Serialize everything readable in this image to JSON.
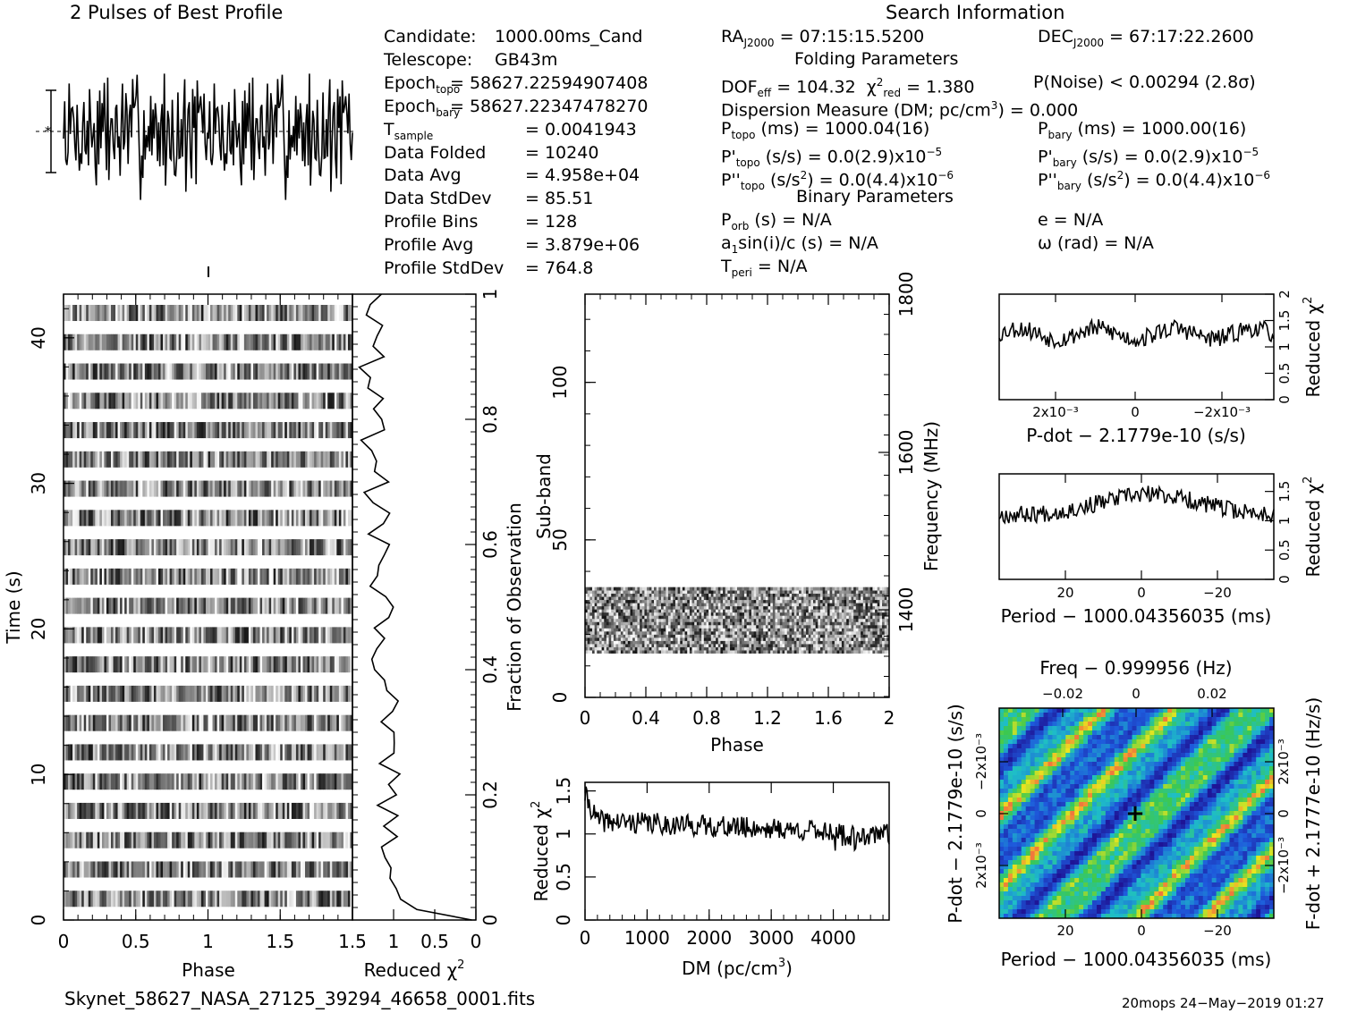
{
  "header": {
    "profile_title": "2 Pulses of Best Profile",
    "search_title": "Search Information"
  },
  "candidate_info": [
    {
      "label": "Candidate:",
      "value": "1000.00ms_Cand"
    },
    {
      "label": "Telescope:",
      "value": "GB43m"
    },
    {
      "label": "Epoch",
      "sub": "topo",
      "value": "= 58627.22594907408"
    },
    {
      "label": "Epoch",
      "sub": "bary",
      "value": "= 58627.22347478270"
    },
    {
      "label": "T",
      "sub": "sample",
      "value": "=   0.0041943"
    },
    {
      "label": "Data Folded",
      "value": "=   10240"
    },
    {
      "label": "Data Avg",
      "value": "=   4.958e+04"
    },
    {
      "label": "Data StdDev",
      "value": "=   85.51"
    },
    {
      "label": "Profile Bins",
      "value": "=   128"
    },
    {
      "label": "Profile Avg",
      "value": "=   3.879e+06"
    },
    {
      "label": "Profile StdDev",
      "value": "=   764.8"
    }
  ],
  "search_info": {
    "ra": "RA",
    "ra_sub": "J2000",
    "ra_value": "= 07:15:15.5200",
    "dec": "DEC",
    "dec_sub": "J2000",
    "dec_value": "= 67:17:22.2600",
    "folding_title": "Folding Parameters",
    "dof": "DOF",
    "dof_sub": "eff",
    "dof_value": "= 104.32",
    "chi": "χ",
    "chi_sup": "2",
    "chi_sub": "red",
    "chi_value": "= 1.380",
    "pnoise": "P(Noise) < 0.00294   (2.8σ)",
    "dm": "Dispersion Measure (DM; pc/cm",
    "dm_sup": "3",
    "dm_value": ") = 0.000",
    "ptopo": "P",
    "ptopo_sub": "topo",
    "ptopo_value": " (ms) =   1000.04(16)",
    "pbary": "P",
    "pbary_sub": "bary",
    "pbary_value": " (ms) =   1000.00(16)",
    "pdtopo": "P'",
    "pdtopo_sub": "topo",
    "pdtopo_value": " (s/s) = 0.0(2.9)x10",
    "pdtopo_sup": "−5",
    "pdbary": "P'",
    "pdbary_sub": "bary",
    "pdbary_value": " (s/s) = 0.0(2.9)x10",
    "pdbary_sup": "−5",
    "pddtopo": "P''",
    "pddtopo_sub": "topo",
    "pddtopo_value": " (s/s",
    "pddtopo_value2": ") = 0.0(4.4)x10",
    "pddtopo_sup2": "−6",
    "pddbary": "P''",
    "pddbary_sub": "bary",
    "pddbary_value": " (s/s",
    "pddbary_value2": ") = 0.0(4.4)x10",
    "pddbary_sup2": "−6",
    "binary_title": "Binary Parameters",
    "porb": "P",
    "porb_sub": "orb",
    "porb_value": " (s) = N/A",
    "e_value": "e = N/A",
    "a1": "a",
    "a1_sub": "1",
    "a1_value": "sin(i)/c (s) = N/A",
    "omega_value": "ω (rad) = N/A",
    "tperi": "T",
    "tperi_sub": "peri",
    "tperi_value": " = N/A"
  },
  "footer": {
    "filename": "Skynet_58627_NASA_27125_39294_46658_0001.fits",
    "stamp": "20mops 24−May−2019 01:27"
  },
  "colors": {
    "line": "#000000",
    "heatmap_low": "#1a1aa8",
    "heatmap_mid": "#1fc4c4",
    "heatmap_high": "#f2e81a"
  },
  "chart_data": [
    {
      "type": "line",
      "title": "2 Pulses of Best Profile",
      "xlabel": "",
      "ylabel": "",
      "note": "noise-like profile, two rotations"
    },
    {
      "type": "heatmap",
      "xlabel": "Phase",
      "ylabel": "Time (s)",
      "x_ticks": [
        "0",
        "0.5",
        "1",
        "1.5"
      ],
      "y_ticks": [
        "0",
        "10",
        "20",
        "30",
        "40"
      ],
      "xlim": [
        0,
        2
      ],
      "ylim": [
        0,
        43
      ]
    },
    {
      "type": "line",
      "xlabel": "Reduced χ²",
      "ylabel": "Fraction of Observation",
      "x_ticks": [
        "1.5",
        "1",
        "0.5",
        "0"
      ],
      "y_ticks": [
        "0",
        "0.2",
        "0.4",
        "0.6",
        "0.8",
        "1"
      ],
      "xlim": [
        1.5,
        0
      ],
      "ylim": [
        0,
        1
      ]
    },
    {
      "type": "heatmap",
      "xlabel": "Phase",
      "ylabel": "Sub-band",
      "y2label": "Frequency (MHz)",
      "x_ticks": [
        "0",
        "0.4",
        "0.8",
        "1.2",
        "1.6",
        "2"
      ],
      "y_ticks": [
        "0",
        "50",
        "100"
      ],
      "y2_ticks": [
        "1400",
        "1600",
        "1800"
      ],
      "xlim": [
        0,
        2
      ],
      "ylim": [
        0,
        128
      ],
      "filled_rows": [
        14,
        35
      ]
    },
    {
      "type": "line",
      "xlabel": "DM (pc/cm³)",
      "ylabel": "Reduced χ²",
      "x_ticks": [
        "0",
        "1000",
        "2000",
        "3000",
        "4000"
      ],
      "y_ticks": [
        "0",
        "0.5",
        "1",
        "1.5"
      ],
      "xlim": [
        0,
        4900
      ],
      "ylim": [
        0,
        1.6
      ]
    },
    {
      "type": "line",
      "xlabel": "P-dot − 2.1779e-10 (s/s)",
      "ylabel": "Reduced χ²",
      "x_ticks": [
        "2x10⁻³",
        "0",
        "−2x10⁻³"
      ],
      "y_ticks": [
        "0",
        "0.5",
        "1",
        "1.5",
        "2"
      ],
      "ylim": [
        0,
        2
      ]
    },
    {
      "type": "line",
      "xlabel": "Period − 1000.04356035 (ms)",
      "ylabel": "Reduced χ²",
      "x_ticks": [
        "20",
        "0",
        "−20"
      ],
      "y_ticks": [
        "0",
        "0.5",
        "1",
        "1.5"
      ],
      "ylim": [
        0,
        1.8
      ]
    },
    {
      "type": "heatmap",
      "title": "Freq − 0.999956 (Hz)",
      "xlabel": "Period − 1000.04356035 (ms)",
      "ylabel": "P-dot − 2.1779e-10 (s/s)",
      "y2label": "F-dot + 2.1777e-10 (Hz/s)",
      "x_ticks": [
        "20",
        "0",
        "−20"
      ],
      "x2_ticks": [
        "−0.02",
        "0",
        "0.02"
      ],
      "y_ticks": [
        "−2x10⁻³",
        "0",
        "2x10⁻³"
      ],
      "y2_ticks": [
        "2x10⁻³",
        "0",
        "−2x10⁻³"
      ]
    }
  ]
}
